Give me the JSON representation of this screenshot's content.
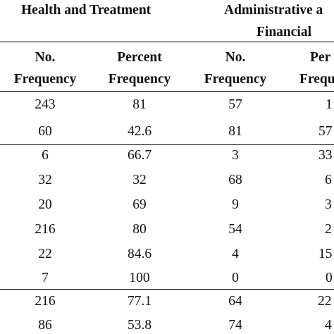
{
  "header": {
    "group_1": "Health and Treatment",
    "group_2_line1": "Administrative a",
    "group_2_line2": "Financial",
    "col_1_top": "No.",
    "col_1_bottom": "Frequency",
    "col_2_top": "Percent",
    "col_2_bottom": "Frequency",
    "col_3_top": "No.",
    "col_3_bottom": "Frequency",
    "col_4_top": "Per",
    "col_4_bottom": "Frequ"
  },
  "rows": [
    [
      "243",
      "81",
      "57",
      "1"
    ],
    [
      "60",
      "42.6",
      "81",
      "57"
    ],
    [
      "6",
      "66.7",
      "3",
      "33"
    ],
    [
      "32",
      "32",
      "68",
      "6"
    ],
    [
      "20",
      "69",
      "9",
      "3"
    ],
    [
      "216",
      "80",
      "54",
      "2"
    ],
    [
      "22",
      "84.6",
      "4",
      "15"
    ],
    [
      "7",
      "100",
      "0",
      "0"
    ],
    [
      "216",
      "77.1",
      "64",
      "22"
    ],
    [
      "86",
      "53.8",
      "74",
      "4"
    ]
  ]
}
